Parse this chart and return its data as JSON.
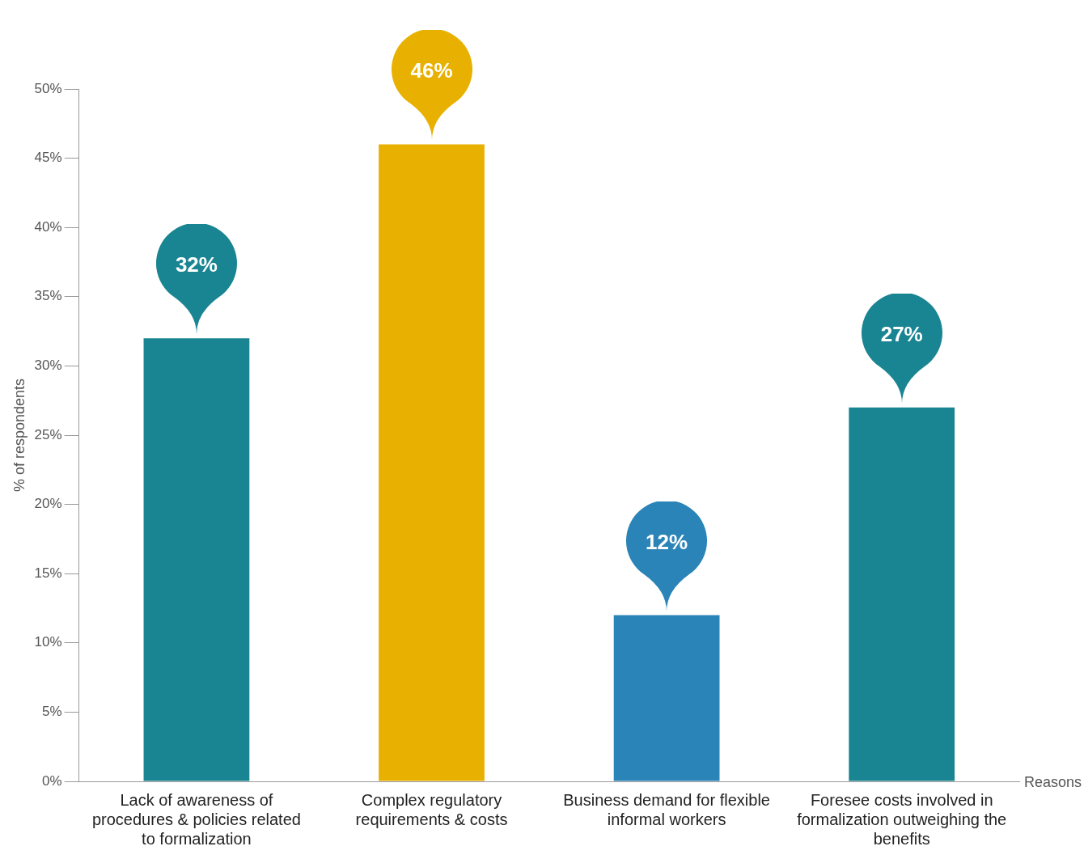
{
  "chart_data": {
    "type": "bar",
    "ylabel": "% of respondents",
    "xlabel": "Reasons",
    "categories": [
      "Lack of awareness of procedures & policies related to formalization",
      "Complex regulatory requirements & costs",
      "Business demand for flexible informal workers",
      "Foresee costs involved in formalization outweighing the benefits"
    ],
    "values": [
      32,
      46,
      12,
      27
    ],
    "colors": [
      "#1a8592",
      "#e8b000",
      "#2a84b8",
      "#1a8592"
    ],
    "value_labels": [
      "32%",
      "46%",
      "12%",
      "27%"
    ],
    "ylim": [
      0,
      50
    ],
    "yticks": [
      {
        "value": 0,
        "label": "0%"
      },
      {
        "value": 5,
        "label": "5%"
      },
      {
        "value": 10,
        "label": "10%"
      },
      {
        "value": 15,
        "label": "15%"
      },
      {
        "value": 20,
        "label": "20%"
      },
      {
        "value": 25,
        "label": "25%"
      },
      {
        "value": 30,
        "label": "30%"
      },
      {
        "value": 35,
        "label": "35%"
      },
      {
        "value": 40,
        "label": "40%"
      },
      {
        "value": 45,
        "label": "45%"
      },
      {
        "value": 50,
        "label": "50%"
      }
    ],
    "grid": false,
    "legend": false
  }
}
